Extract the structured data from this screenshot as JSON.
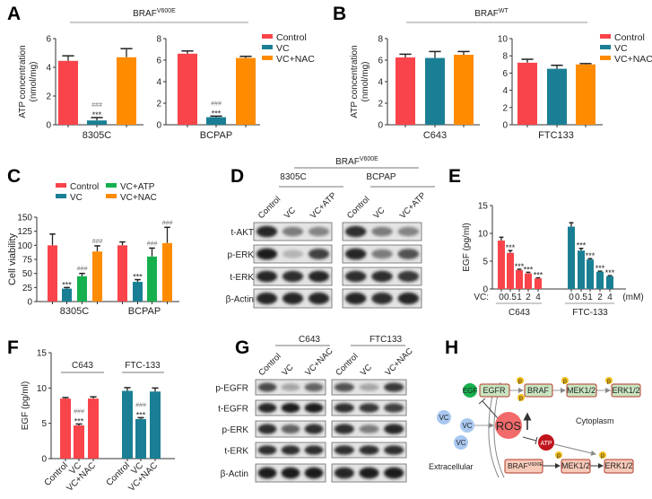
{
  "colors": {
    "Control": "#f8444a",
    "VC": "#1a7f94",
    "VC+NAC": "#ff8c00",
    "VC+ATP": "#16b04e",
    "C643": "#f8444a",
    "FTC-133": "#1a7f94"
  },
  "panels": {
    "A": "A",
    "B": "B",
    "C": "C",
    "D": "D",
    "E": "E",
    "F": "F",
    "G": "G",
    "H": "H"
  },
  "headers": {
    "A": {
      "base": "BRAF",
      "sup": "V600E"
    },
    "B": {
      "base": "BRAF",
      "sup": "WT"
    },
    "D": {
      "base": "BRAF",
      "sup": "V600E"
    }
  },
  "legends": {
    "A": [
      "Control",
      "VC",
      "VC+NAC"
    ],
    "B": [
      "Control",
      "VC",
      "VC+NAC"
    ],
    "C": [
      "Control",
      "VC+ATP",
      "VC",
      "VC+NAC"
    ]
  },
  "chart_data": [
    {
      "id": "A1",
      "panel": "A",
      "type": "bar",
      "ylabel": [
        "ATP concentration",
        "(nmol/mg)"
      ],
      "ylim": [
        0,
        6
      ],
      "yticks": [
        "0",
        "2",
        "4",
        "6"
      ],
      "categories": [
        "8305C"
      ],
      "series": [
        {
          "name": "Control",
          "values": [
            4.45
          ],
          "errors": [
            0.35
          ],
          "marks": [
            []
          ]
        },
        {
          "name": "VC",
          "values": [
            0.3
          ],
          "errors": [
            0.2
          ],
          "marks": [
            [
              "###",
              "***"
            ]
          ]
        },
        {
          "name": "VC+NAC",
          "values": [
            4.7
          ],
          "errors": [
            0.6
          ],
          "marks": [
            []
          ]
        }
      ]
    },
    {
      "id": "A2",
      "panel": "A",
      "type": "bar",
      "ylabel": [],
      "ylim": [
        0,
        8
      ],
      "yticks": [
        "0",
        "2",
        "4",
        "6",
        "8"
      ],
      "categories": [
        "BCPAP"
      ],
      "series": [
        {
          "name": "Control",
          "values": [
            6.6
          ],
          "errors": [
            0.25
          ],
          "marks": [
            []
          ]
        },
        {
          "name": "VC",
          "values": [
            0.7
          ],
          "errors": [
            0.1
          ],
          "marks": [
            [
              "###",
              "***"
            ]
          ]
        },
        {
          "name": "VC+NAC",
          "values": [
            6.2
          ],
          "errors": [
            0.15
          ],
          "marks": [
            []
          ]
        }
      ]
    },
    {
      "id": "B1",
      "panel": "B",
      "type": "bar",
      "ylabel": [
        "ATP concentration",
        "(nmol/mg)"
      ],
      "ylim": [
        0,
        8
      ],
      "yticks": [
        "0",
        "2",
        "4",
        "6",
        "8"
      ],
      "categories": [
        "C643"
      ],
      "series": [
        {
          "name": "Control",
          "values": [
            6.25
          ],
          "errors": [
            0.3
          ],
          "marks": [
            []
          ]
        },
        {
          "name": "VC",
          "values": [
            6.2
          ],
          "errors": [
            0.6
          ],
          "marks": [
            []
          ]
        },
        {
          "name": "VC+NAC",
          "values": [
            6.5
          ],
          "errors": [
            0.3
          ],
          "marks": [
            []
          ]
        }
      ]
    },
    {
      "id": "B2",
      "panel": "B",
      "type": "bar",
      "ylabel": [],
      "ylim": [
        0,
        10
      ],
      "yticks": [
        "0",
        "2",
        "4",
        "6",
        "8",
        "10"
      ],
      "categories": [
        "FTC133"
      ],
      "series": [
        {
          "name": "Control",
          "values": [
            7.2
          ],
          "errors": [
            0.4
          ],
          "marks": [
            []
          ]
        },
        {
          "name": "VC",
          "values": [
            6.5
          ],
          "errors": [
            0.4
          ],
          "marks": [
            []
          ]
        },
        {
          "name": "VC+NAC",
          "values": [
            7.0
          ],
          "errors": [
            0.1
          ],
          "marks": [
            []
          ]
        }
      ]
    },
    {
      "id": "C",
      "panel": "C",
      "type": "bar",
      "ylabel": [
        "Cell viability"
      ],
      "ylim": [
        0,
        150
      ],
      "yticks": [
        "0",
        "25",
        "50",
        "75",
        "100",
        "125",
        "150"
      ],
      "categories": [
        "8305C",
        "BCPAP"
      ],
      "series": [
        {
          "name": "Control",
          "values": [
            100,
            100
          ],
          "errors": [
            20,
            6
          ],
          "marks": [
            [],
            []
          ]
        },
        {
          "name": "VC",
          "values": [
            23,
            35
          ],
          "errors": [
            2,
            4
          ],
          "marks": [
            [
              "***"
            ],
            [
              "***"
            ]
          ]
        },
        {
          "name": "VC+ATP",
          "values": [
            45,
            80
          ],
          "errors": [
            5,
            15
          ],
          "marks": [
            [
              "###"
            ],
            [
              "###"
            ]
          ]
        },
        {
          "name": "VC+NAC",
          "values": [
            89,
            104
          ],
          "errors": [
            10,
            28
          ],
          "marks": [
            [
              "###"
            ],
            [
              "###"
            ]
          ]
        }
      ]
    },
    {
      "id": "E",
      "panel": "E",
      "type": "bar",
      "ylabel": [
        "EGF (pg/ml)"
      ],
      "ylim": [
        0,
        15
      ],
      "yticks": [
        "0",
        "5",
        "10",
        "15"
      ],
      "xprefix": "VC:",
      "xunit": "(mM)",
      "categories": [
        "0",
        "0.5",
        "1",
        "2",
        "4"
      ],
      "series": [
        {
          "name": "C643",
          "values": [
            8.7,
            6.5,
            3.4,
            2.8,
            1.9
          ],
          "errors": [
            0.6,
            0.4,
            0.15,
            0.2,
            0.1
          ],
          "marks": [
            [],
            [
              "***"
            ],
            [
              "***"
            ],
            [
              "***"
            ],
            [
              "***"
            ]
          ]
        },
        {
          "name": "FTC-133",
          "values": [
            11.2,
            6.9,
            5.3,
            3.1,
            2.3
          ],
          "errors": [
            0.7,
            0.4,
            0.15,
            0.1,
            0.1
          ],
          "marks": [
            [],
            [
              "***"
            ],
            [
              "***"
            ],
            [
              "***"
            ],
            [
              "***"
            ]
          ]
        }
      ]
    },
    {
      "id": "F",
      "panel": "F",
      "type": "bar",
      "ylabel": [
        "EGF (pg/ml)"
      ],
      "ylim": [
        0,
        15
      ],
      "yticks": [
        "0",
        "5",
        "10",
        "15"
      ],
      "categories": [
        "Control",
        "VC",
        "VC+NAC"
      ],
      "series": [
        {
          "name": "C643",
          "values": [
            8.5,
            4.7,
            8.5
          ],
          "errors": [
            0.15,
            0.2,
            0.25
          ],
          "marks": [
            [],
            [
              "###",
              "***"
            ],
            []
          ]
        },
        {
          "name": "FTC-133",
          "values": [
            9.6,
            5.6,
            9.5
          ],
          "errors": [
            0.45,
            0.2,
            0.5
          ],
          "marks": [
            [],
            [
              "###",
              "***"
            ],
            []
          ]
        }
      ]
    }
  ],
  "blots": {
    "D": {
      "groups": [
        "8305C",
        "BCPAP"
      ],
      "lanes": [
        "Control",
        "VC",
        "VC+ATP"
      ],
      "rows": [
        {
          "label": "t-AKT",
          "intensity": [
            [
              0.95,
              0.45,
              0.4
            ],
            [
              0.9,
              0.45,
              0.4
            ]
          ]
        },
        {
          "label": "p-ERK",
          "intensity": [
            [
              1.0,
              0.12,
              0.8
            ],
            [
              0.95,
              0.45,
              0.7
            ]
          ]
        },
        {
          "label": "t-ERK",
          "intensity": [
            [
              0.95,
              0.9,
              0.95
            ],
            [
              0.9,
              0.9,
              0.85
            ]
          ]
        },
        {
          "label": "β-Actin",
          "intensity": [
            [
              0.95,
              0.95,
              0.95
            ],
            [
              0.95,
              0.9,
              0.95
            ]
          ]
        }
      ]
    },
    "G": {
      "groups": [
        "C643",
        "FTC133"
      ],
      "lanes": [
        "Control",
        "VC",
        "VC+NAC"
      ],
      "rows": [
        {
          "label": "p-EGFR",
          "intensity": [
            [
              0.75,
              0.2,
              0.6
            ],
            [
              0.7,
              0.2,
              0.85
            ]
          ]
        },
        {
          "label": "t-EGFR",
          "intensity": [
            [
              0.95,
              1.0,
              1.0
            ],
            [
              0.9,
              0.85,
              0.8
            ]
          ]
        },
        {
          "label": "p-ERK",
          "intensity": [
            [
              0.9,
              0.6,
              0.9
            ],
            [
              0.9,
              0.45,
              0.95
            ]
          ]
        },
        {
          "label": "t-ERK",
          "intensity": [
            [
              0.9,
              0.9,
              0.9
            ],
            [
              0.9,
              0.9,
              0.9
            ]
          ]
        },
        {
          "label": "β-Actin",
          "intensity": [
            [
              1.0,
              1.0,
              1.0
            ],
            [
              0.95,
              1.0,
              1.0
            ]
          ]
        }
      ]
    }
  },
  "diagram": {
    "egf": "EGF",
    "egfr": "EGFR",
    "braf": "BRAF",
    "mek": "MEK1/2",
    "erk": "ERK1/2",
    "ros": "ROS",
    "atp": "ATP",
    "vc": "VC",
    "p": "p",
    "braf_mut": {
      "base": "BRAF",
      "sup": "V600E"
    },
    "cytoplasm": "Cytoplasm",
    "extracellular": "Extracellular"
  }
}
